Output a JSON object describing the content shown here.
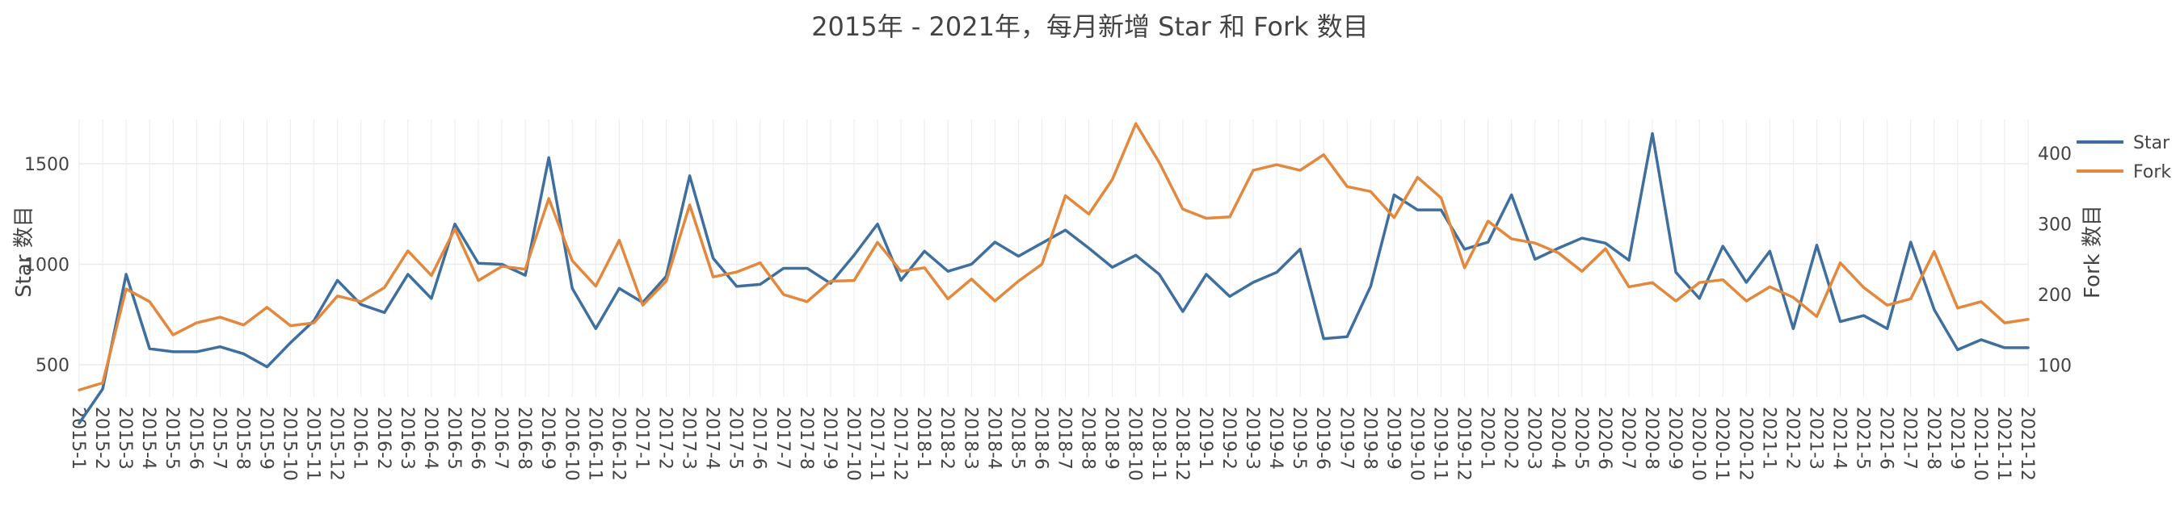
{
  "chart_data": {
    "type": "line",
    "title": "2015年 - 2021年，每月新增 Star 和 Fork 数目",
    "ylabel": "Star 数目",
    "y2label": "Fork 数目",
    "ylim": [
      340,
      1720
    ],
    "y2lim": [
      55,
      448
    ],
    "y_ticks": [
      500,
      1000,
      1500
    ],
    "y2_ticks": [
      100,
      200,
      300,
      400
    ],
    "grid": true,
    "legend": "top-right",
    "colors": {
      "Star": "#3e6f9f",
      "Fork": "#e3883c"
    },
    "x": [
      "2015-1",
      "2015-2",
      "2015-3",
      "2015-4",
      "2015-5",
      "2015-6",
      "2015-7",
      "2015-8",
      "2015-9",
      "2015-10",
      "2015-11",
      "2015-12",
      "2016-1",
      "2016-2",
      "2016-3",
      "2016-4",
      "2016-5",
      "2016-6",
      "2016-7",
      "2016-8",
      "2016-9",
      "2016-10",
      "2016-11",
      "2016-12",
      "2017-1",
      "2017-2",
      "2017-3",
      "2017-4",
      "2017-5",
      "2017-6",
      "2017-7",
      "2017-8",
      "2017-9",
      "2017-10",
      "2017-11",
      "2017-12",
      "2018-1",
      "2018-2",
      "2018-3",
      "2018-4",
      "2018-5",
      "2018-6",
      "2018-7",
      "2018-8",
      "2018-9",
      "2018-10",
      "2018-11",
      "2018-12",
      "2019-1",
      "2019-2",
      "2019-3",
      "2019-4",
      "2019-5",
      "2019-6",
      "2019-7",
      "2019-8",
      "2019-9",
      "2019-10",
      "2019-11",
      "2019-12",
      "2020-1",
      "2020-2",
      "2020-3",
      "2020-4",
      "2020-5",
      "2020-6",
      "2020-7",
      "2020-8",
      "2020-9",
      "2020-10",
      "2020-11",
      "2020-12",
      "2021-1",
      "2021-2",
      "2021-3",
      "2021-4",
      "2021-5",
      "2021-6",
      "2021-7",
      "2021-8",
      "2021-9",
      "2021-10",
      "2021-11",
      "2021-12"
    ],
    "series": [
      {
        "name": "Star",
        "axis": "left",
        "values": [
          210,
          380,
          950,
          580,
          565,
          565,
          590,
          555,
          490,
          610,
          720,
          920,
          800,
          760,
          950,
          830,
          1200,
          1005,
          1000,
          945,
          1530,
          880,
          680,
          880,
          810,
          940,
          1440,
          1030,
          890,
          900,
          980,
          980,
          905,
          1045,
          1200,
          920,
          1065,
          965,
          1000,
          1110,
          1040,
          1105,
          1170,
          1080,
          985,
          1045,
          950,
          765,
          950,
          840,
          910,
          960,
          1075,
          630,
          640,
          890,
          1345,
          1270,
          1270,
          1075,
          1110,
          1345,
          1025,
          1080,
          1130,
          1105,
          1020,
          1650,
          960,
          830,
          1090,
          910,
          1065,
          680,
          1095,
          715,
          745,
          680,
          1110,
          775,
          575,
          625,
          585,
          585
        ]
      },
      {
        "name": "Fork",
        "axis": "right",
        "values": [
          65,
          75,
          208,
          190,
          143,
          160,
          168,
          157,
          182,
          156,
          160,
          198,
          190,
          210,
          262,
          227,
          293,
          220,
          240,
          236,
          336,
          248,
          212,
          277,
          185,
          219,
          327,
          225,
          232,
          245,
          200,
          190,
          219,
          220,
          274,
          233,
          238,
          194,
          222,
          191,
          219,
          243,
          340,
          314,
          363,
          442,
          387,
          321,
          308,
          310,
          376,
          384,
          376,
          398,
          353,
          346,
          309,
          366,
          337,
          238,
          304,
          279,
          273,
          259,
          233,
          265,
          211,
          217,
          191,
          217,
          221,
          191,
          211,
          196,
          169,
          245,
          210,
          185,
          194,
          261,
          181,
          190,
          160,
          165
        ]
      }
    ]
  }
}
